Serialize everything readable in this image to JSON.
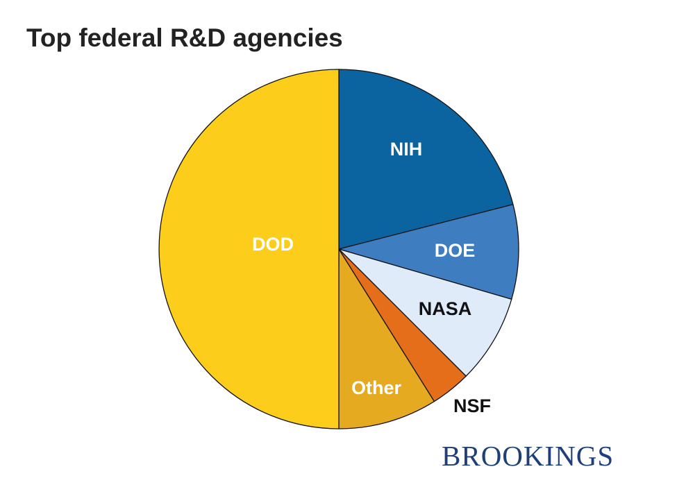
{
  "title": "Top federal R&D agencies",
  "brand": "BROOKINGS",
  "chart_data": {
    "type": "pie",
    "title": "Top federal R&D agencies",
    "unit": "percent",
    "start": "12 o'clock",
    "direction": "clockwise",
    "slices": [
      {
        "label": "NIH",
        "value": 21.0,
        "color": "#0b63a0",
        "label_color": "#ffffff"
      },
      {
        "label": "DOE",
        "value": 8.5,
        "color": "#3e7ec0",
        "label_color": "#ffffff"
      },
      {
        "label": "NASA",
        "value": 8.0,
        "color": "#e0ebf9",
        "label_color": "#111111"
      },
      {
        "label": "NSF",
        "value": 3.6,
        "color": "#e56e1b",
        "label_color": "#111111"
      },
      {
        "label": "Other",
        "value": 8.9,
        "color": "#e5aa20",
        "label_color": "#ffffff"
      },
      {
        "label": "DOD",
        "value": 50.0,
        "color": "#fccd1b",
        "label_color": "#ffffff"
      }
    ]
  }
}
